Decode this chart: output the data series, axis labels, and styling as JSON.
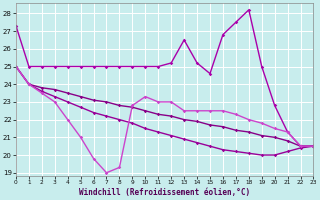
{
  "background_color": "#c8eded",
  "grid_color": "#ffffff",
  "xlabel": "Windchill (Refroidissement éolien,°C)",
  "xlim": [
    0,
    23
  ],
  "ylim": [
    18.8,
    28.6
  ],
  "yticks": [
    19,
    20,
    21,
    22,
    23,
    24,
    25,
    26,
    27,
    28
  ],
  "xticks": [
    0,
    1,
    2,
    3,
    4,
    5,
    6,
    7,
    8,
    9,
    10,
    11,
    12,
    13,
    14,
    15,
    16,
    17,
    18,
    19,
    20,
    21,
    22,
    23
  ],
  "series": [
    {
      "name": "line1_flat_then_zigzag",
      "x": [
        0,
        1,
        2,
        3,
        4,
        5,
        6,
        7,
        8,
        9,
        10,
        11,
        12,
        13,
        14,
        15,
        16,
        17,
        18,
        19,
        20,
        21,
        22,
        23
      ],
      "y": [
        27.3,
        25.0,
        25.0,
        25.0,
        25.0,
        25.0,
        25.0,
        25.0,
        25.0,
        25.0,
        25.0,
        25.0,
        25.2,
        26.5,
        25.2,
        24.6,
        26.8,
        27.5,
        28.2,
        25.0,
        22.8,
        21.3,
        20.5,
        20.5
      ],
      "color": "#aa00aa",
      "lw": 1.0
    },
    {
      "name": "line2_gentle_decline",
      "x": [
        0,
        1,
        2,
        3,
        4,
        5,
        6,
        7,
        8,
        9,
        10,
        11,
        12,
        13,
        14,
        15,
        16,
        17,
        18,
        19,
        20,
        21,
        22,
        23
      ],
      "y": [
        25.0,
        24.0,
        23.8,
        23.7,
        23.5,
        23.3,
        23.1,
        23.0,
        22.8,
        22.7,
        22.5,
        22.3,
        22.2,
        22.0,
        21.9,
        21.7,
        21.6,
        21.4,
        21.3,
        21.1,
        21.0,
        20.8,
        20.5,
        20.5
      ],
      "color": "#880088",
      "lw": 1.0
    },
    {
      "name": "line3_moderate_decline",
      "x": [
        0,
        1,
        2,
        3,
        4,
        5,
        6,
        7,
        8,
        9,
        10,
        11,
        12,
        13,
        14,
        15,
        16,
        17,
        18,
        19,
        20,
        21,
        22,
        23
      ],
      "y": [
        25.0,
        24.0,
        23.6,
        23.3,
        23.0,
        22.7,
        22.4,
        22.2,
        22.0,
        21.8,
        21.5,
        21.3,
        21.1,
        20.9,
        20.7,
        20.5,
        20.3,
        20.2,
        20.1,
        20.0,
        20.0,
        20.2,
        20.4,
        20.5
      ],
      "color": "#990099",
      "lw": 1.0
    },
    {
      "name": "line4_bottom_zigzag",
      "x": [
        0,
        1,
        2,
        3,
        4,
        5,
        6,
        7,
        8,
        9,
        10,
        11,
        12,
        13,
        14,
        15,
        16,
        17,
        18,
        19,
        20,
        21,
        22,
        23
      ],
      "y": [
        25.0,
        24.0,
        23.5,
        23.0,
        22.0,
        21.0,
        19.8,
        19.0,
        19.3,
        22.8,
        23.3,
        23.0,
        23.0,
        22.5,
        22.5,
        22.5,
        22.5,
        22.3,
        22.0,
        21.8,
        21.5,
        21.3,
        20.5,
        20.5
      ],
      "color": "#cc44cc",
      "lw": 1.0
    }
  ]
}
